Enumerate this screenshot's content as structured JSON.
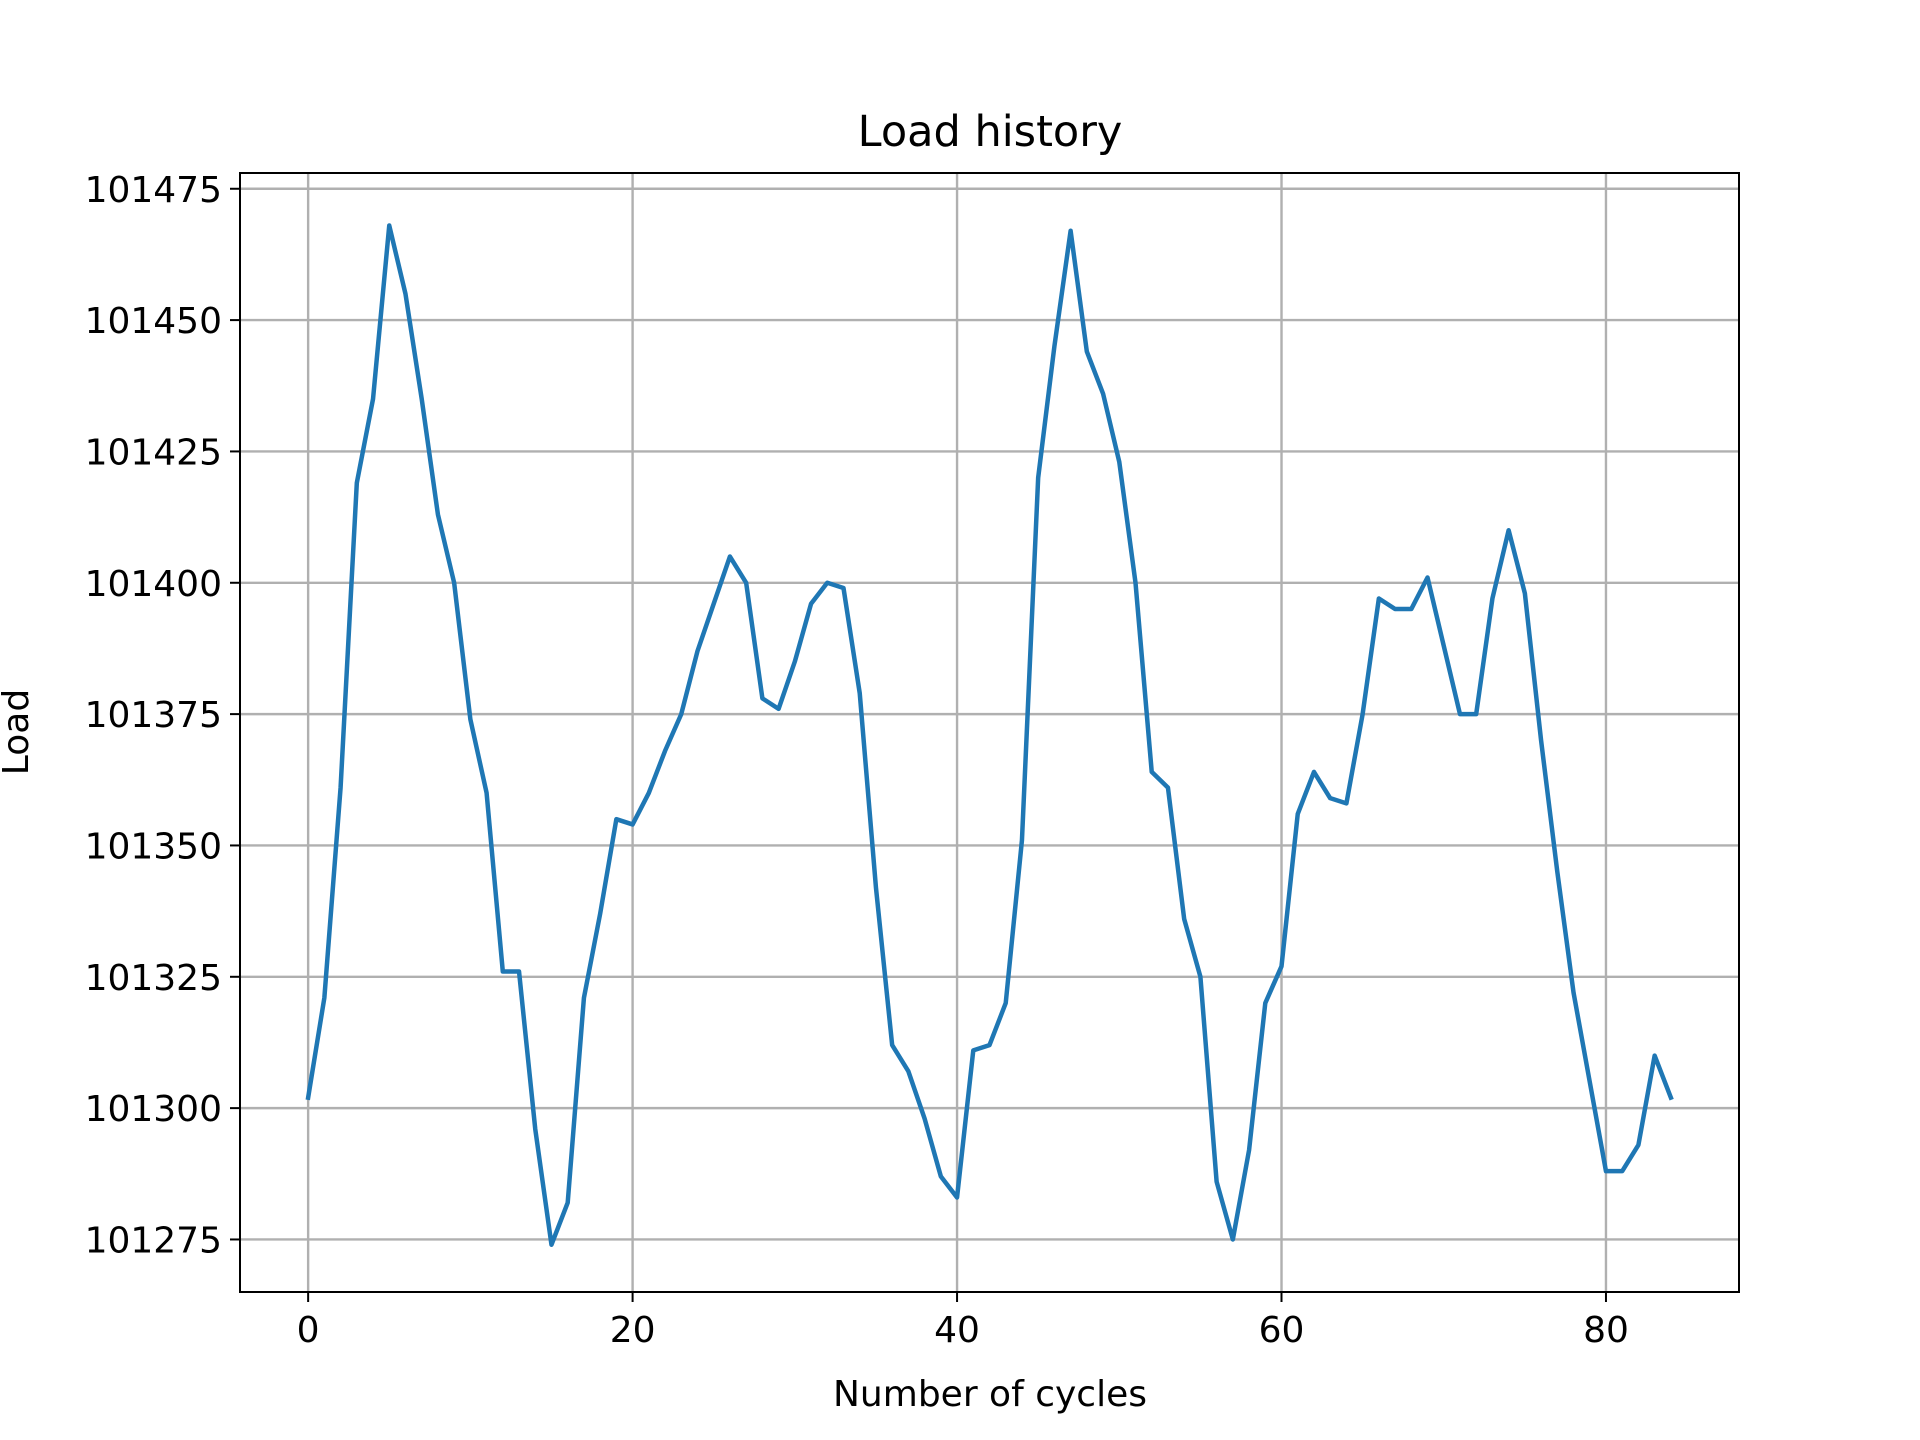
{
  "chart_data": {
    "type": "line",
    "title": "Load history",
    "xlabel": "Number of cycles",
    "ylabel": "Load",
    "xlim": [
      -4.2,
      88.2
    ],
    "ylim": [
      101265,
      101478
    ],
    "xticks": [
      0,
      20,
      40,
      60,
      80
    ],
    "yticks": [
      101275,
      101300,
      101325,
      101350,
      101375,
      101400,
      101425,
      101450,
      101475
    ],
    "grid": true,
    "colors": {
      "series": "#1f77b4",
      "grid": "#b0b0b0"
    },
    "series": [
      {
        "x": [
          0,
          1,
          2,
          3,
          4,
          5,
          6,
          7,
          8,
          9,
          10,
          11,
          12,
          13,
          14,
          15,
          16,
          17,
          18,
          19,
          20,
          21,
          22,
          23,
          24,
          25,
          26,
          27,
          28,
          29,
          30,
          31,
          32,
          33,
          34,
          35,
          36,
          37,
          38,
          39,
          40,
          41,
          42,
          43,
          44,
          45,
          46,
          47,
          48,
          49,
          50,
          51,
          52,
          53,
          54,
          55,
          56,
          57,
          58,
          59,
          60,
          61,
          62,
          63,
          64,
          65,
          66,
          67,
          68,
          69,
          70,
          71,
          72,
          73,
          74,
          75,
          76,
          77,
          78,
          79,
          80,
          81,
          82,
          83,
          84
        ],
        "values": [
          101302,
          101321,
          101361,
          101419,
          101435,
          101468,
          101455,
          101435,
          101413,
          101400,
          101374,
          101360,
          101326,
          101326,
          101296,
          101274,
          101282,
          101321,
          101337,
          101355,
          101354,
          101360,
          101368,
          101375,
          101387,
          101396,
          101405,
          101400,
          101378,
          101376,
          101385,
          101396,
          101400,
          101399,
          101379,
          101342,
          101312,
          101307,
          101298,
          101287,
          101283,
          101311,
          101312,
          101320,
          101351,
          101420,
          101445,
          101467,
          101444,
          101436,
          101423,
          101400,
          101364,
          101361,
          101336,
          101325,
          101286,
          101275,
          101292,
          101320,
          101327,
          101356,
          101364,
          101359,
          101358,
          101375,
          101397,
          101395,
          101395,
          101401,
          101388,
          101375,
          101375,
          101397,
          101410,
          101398,
          101370,
          101345,
          101322,
          101305,
          101288,
          101288,
          101293,
          101310,
          101302
        ]
      }
    ]
  }
}
